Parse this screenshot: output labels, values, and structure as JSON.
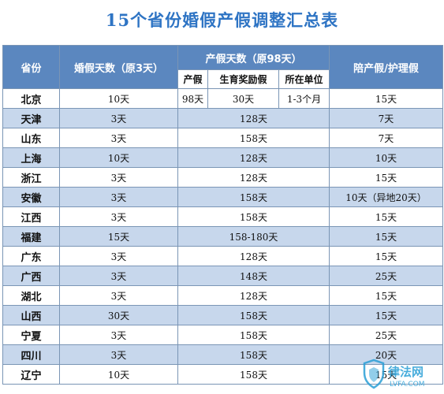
{
  "title": "15个省份婚假产假调整汇总表",
  "header": {
    "province": "省份",
    "marriage": "婚假天数（原3天）",
    "maternity": "产假天数（原98天）",
    "paternity": "陪产假/护理假",
    "sub": {
      "base": "产假",
      "reward": "生育奖励假",
      "employer": "所在单位"
    }
  },
  "beijing": {
    "province": "北京",
    "marriage": "10天",
    "base": "98天",
    "reward": "30天",
    "employer": "1-3个月",
    "paternity": "15天"
  },
  "rows": [
    {
      "province": "天津",
      "marriage": "3天",
      "maternity": "128天",
      "paternity": "7天"
    },
    {
      "province": "山东",
      "marriage": "3天",
      "maternity": "158天",
      "paternity": "7天"
    },
    {
      "province": "上海",
      "marriage": "10天",
      "maternity": "128天",
      "paternity": "10天"
    },
    {
      "province": "浙江",
      "marriage": "3天",
      "maternity": "128天",
      "paternity": "15天"
    },
    {
      "province": "安徽",
      "marriage": "3天",
      "maternity": "158天",
      "paternity": "10天（异地20天）"
    },
    {
      "province": "江西",
      "marriage": "3天",
      "maternity": "158天",
      "paternity": "15天"
    },
    {
      "province": "福建",
      "marriage": "15天",
      "maternity": "158-180天",
      "paternity": "15天"
    },
    {
      "province": "广东",
      "marriage": "3天",
      "maternity": "128天",
      "paternity": "15天"
    },
    {
      "province": "广西",
      "marriage": "3天",
      "maternity": "148天",
      "paternity": "25天"
    },
    {
      "province": "湖北",
      "marriage": "3天",
      "maternity": "128天",
      "paternity": "15天"
    },
    {
      "province": "山西",
      "marriage": "30天",
      "maternity": "158天",
      "paternity": "15天"
    },
    {
      "province": "宁夏",
      "marriage": "3天",
      "maternity": "158天",
      "paternity": "25天"
    },
    {
      "province": "四川",
      "marriage": "3天",
      "maternity": "158天",
      "paternity": "20天"
    },
    {
      "province": "辽宁",
      "marriage": "10天",
      "maternity": "158天",
      "paternity": "15天"
    }
  ],
  "watermark": {
    "brand": "律法网",
    "site": "LVFA.COM",
    "icon": "shield-logo-icon",
    "color": "#2a9fd6"
  }
}
